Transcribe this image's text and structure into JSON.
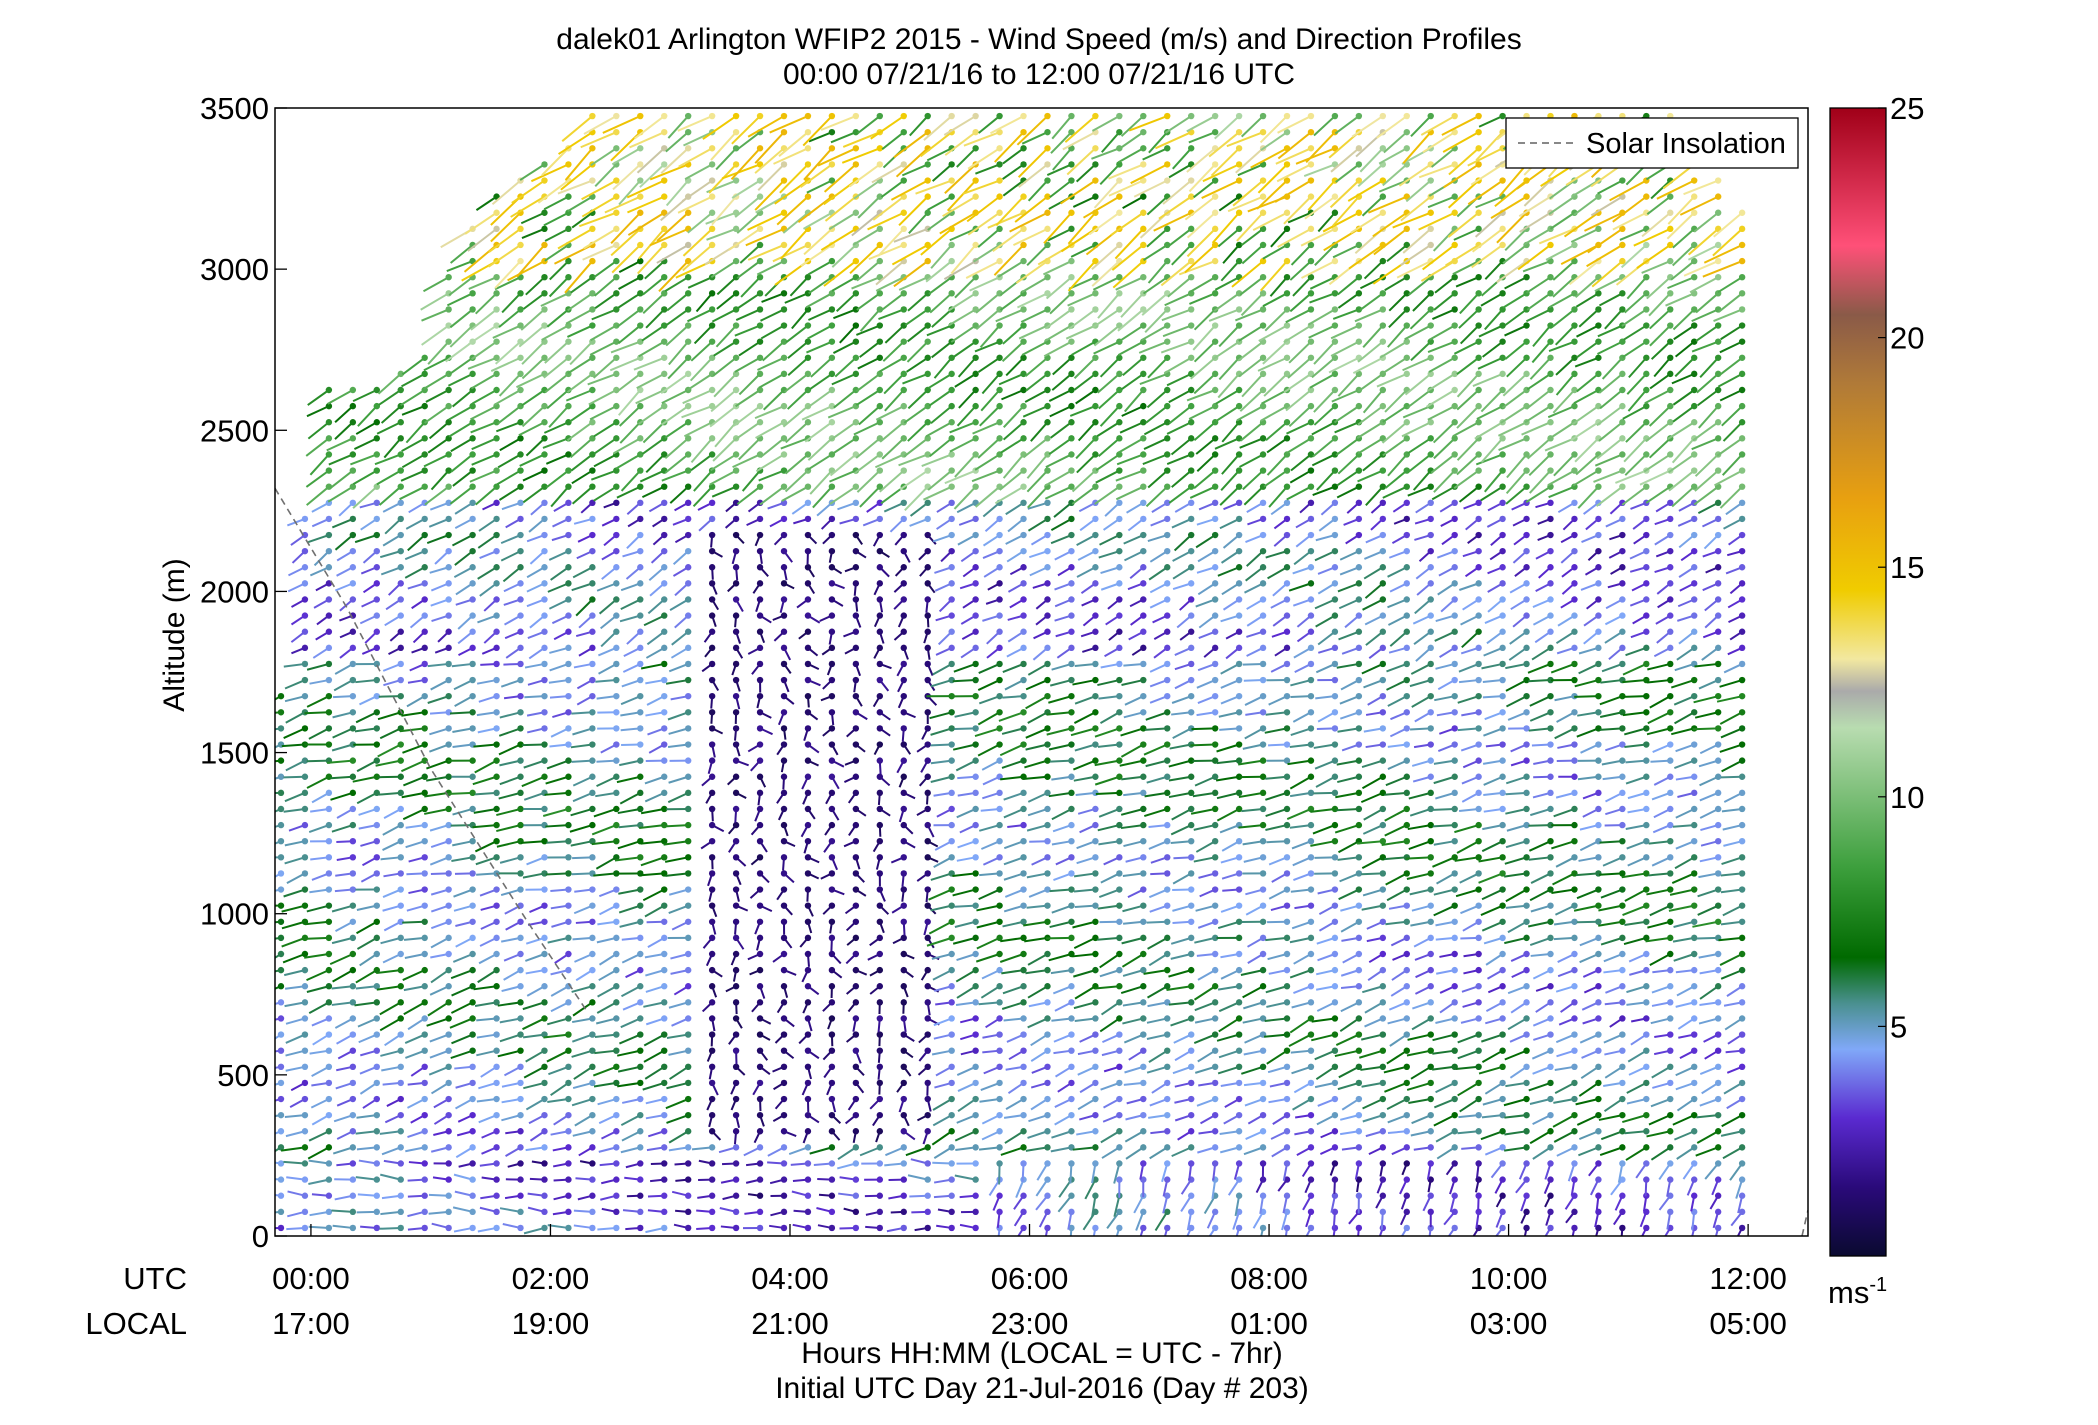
{
  "chart_data": {
    "type": "wind-barb-profile",
    "title": "dalek01 Arlington WFIP2 2015 - Wind Speed (m/s) and Direction Profiles",
    "subtitle": "00:00 07/21/16 to 12:00 07/21/16  UTC",
    "ylabel": "Altitude (m)",
    "xlabel": "Hours HH:MM  (LOCAL = UTC - 7hr)",
    "xlabel2": "Initial UTC Day 21-Jul-2016 (Day # 203)",
    "row_labels": [
      "UTC",
      "LOCAL"
    ],
    "xlim_hours": [
      -0.3,
      12.5
    ],
    "ylim": [
      0,
      3500
    ],
    "y_ticks": [
      0,
      500,
      1000,
      1500,
      2000,
      2500,
      3000,
      3500
    ],
    "x_ticks": [
      {
        "hour": 0,
        "utc": "00:00",
        "local": "17:00"
      },
      {
        "hour": 2,
        "utc": "02:00",
        "local": "19:00"
      },
      {
        "hour": 4,
        "utc": "04:00",
        "local": "21:00"
      },
      {
        "hour": 6,
        "utc": "06:00",
        "local": "23:00"
      },
      {
        "hour": 8,
        "utc": "08:00",
        "local": "01:00"
      },
      {
        "hour": 10,
        "utc": "10:00",
        "local": "03:00"
      },
      {
        "hour": 12,
        "utc": "12:00",
        "local": "05:00"
      }
    ],
    "legend": {
      "label": "Solar Insolation",
      "placement": "top-right",
      "line_style": "dashed",
      "color": "#888888"
    },
    "solar_insolation_line": [
      [
        -0.3,
        2320
      ],
      [
        0.3,
        1950
      ],
      [
        1.0,
        1450
      ],
      [
        1.8,
        980
      ],
      [
        2.3,
        700
      ]
    ],
    "solar_insolation_line_2": [
      [
        12.45,
        0
      ],
      [
        12.5,
        80
      ]
    ],
    "colorbar": {
      "label": "ms",
      "label_superscript": "-1",
      "min": 0,
      "max": 25,
      "ticks": [
        5,
        10,
        15,
        20,
        25
      ],
      "stops": [
        {
          "v": 0,
          "c": "#0a0a30"
        },
        {
          "v": 1.5,
          "c": "#2a0a7a"
        },
        {
          "v": 3,
          "c": "#5a2ad0"
        },
        {
          "v": 4.5,
          "c": "#80a8f8"
        },
        {
          "v": 5.5,
          "c": "#4a9090"
        },
        {
          "v": 6.5,
          "c": "#006a00"
        },
        {
          "v": 8.5,
          "c": "#3ea03e"
        },
        {
          "v": 11.5,
          "c": "#b8dcb0"
        },
        {
          "v": 12.3,
          "c": "#aaaaaa"
        },
        {
          "v": 13,
          "c": "#f2e8a0"
        },
        {
          "v": 14.5,
          "c": "#f0cc00"
        },
        {
          "v": 16.5,
          "c": "#e8a010"
        },
        {
          "v": 19,
          "c": "#b07a38"
        },
        {
          "v": 20.5,
          "c": "#8a5a48"
        },
        {
          "v": 22,
          "c": "#ff5078"
        },
        {
          "v": 25,
          "c": "#a00018"
        }
      ]
    },
    "barb_grid": {
      "time_step_hours": 0.2,
      "altitude_step_m": 50,
      "length_scale": 0.6,
      "top_envelope": [
        [
          -0.25,
          1700
        ],
        [
          0.1,
          2620
        ],
        [
          0.9,
          2700
        ],
        [
          1.3,
          3150
        ],
        [
          2.4,
          3500
        ],
        [
          11.3,
          3500
        ],
        [
          12.0,
          3150
        ],
        [
          12.0,
          2400
        ]
      ],
      "regions": [
        {
          "name": "upper",
          "alt": [
            2300,
            3500
          ],
          "speed": 9,
          "dir": 235,
          "hi_band": [
            3000,
            3500,
            14
          ]
        },
        {
          "name": "mid-upper",
          "alt": [
            1800,
            2300
          ],
          "speed": 4,
          "dir": 240
        },
        {
          "name": "mid",
          "alt": [
            900,
            1800
          ],
          "speed": 5.5,
          "dir": 255
        },
        {
          "name": "lower",
          "alt": [
            250,
            900
          ],
          "speed": 5,
          "dir": 250
        },
        {
          "name": "near-surface",
          "alt": [
            0,
            250
          ],
          "speed": 3.5,
          "dir": 270
        }
      ],
      "calm_column": {
        "hours": [
          3.3,
          5.2
        ],
        "alt": [
          300,
          2200
        ],
        "speed": 0.8
      }
    }
  }
}
